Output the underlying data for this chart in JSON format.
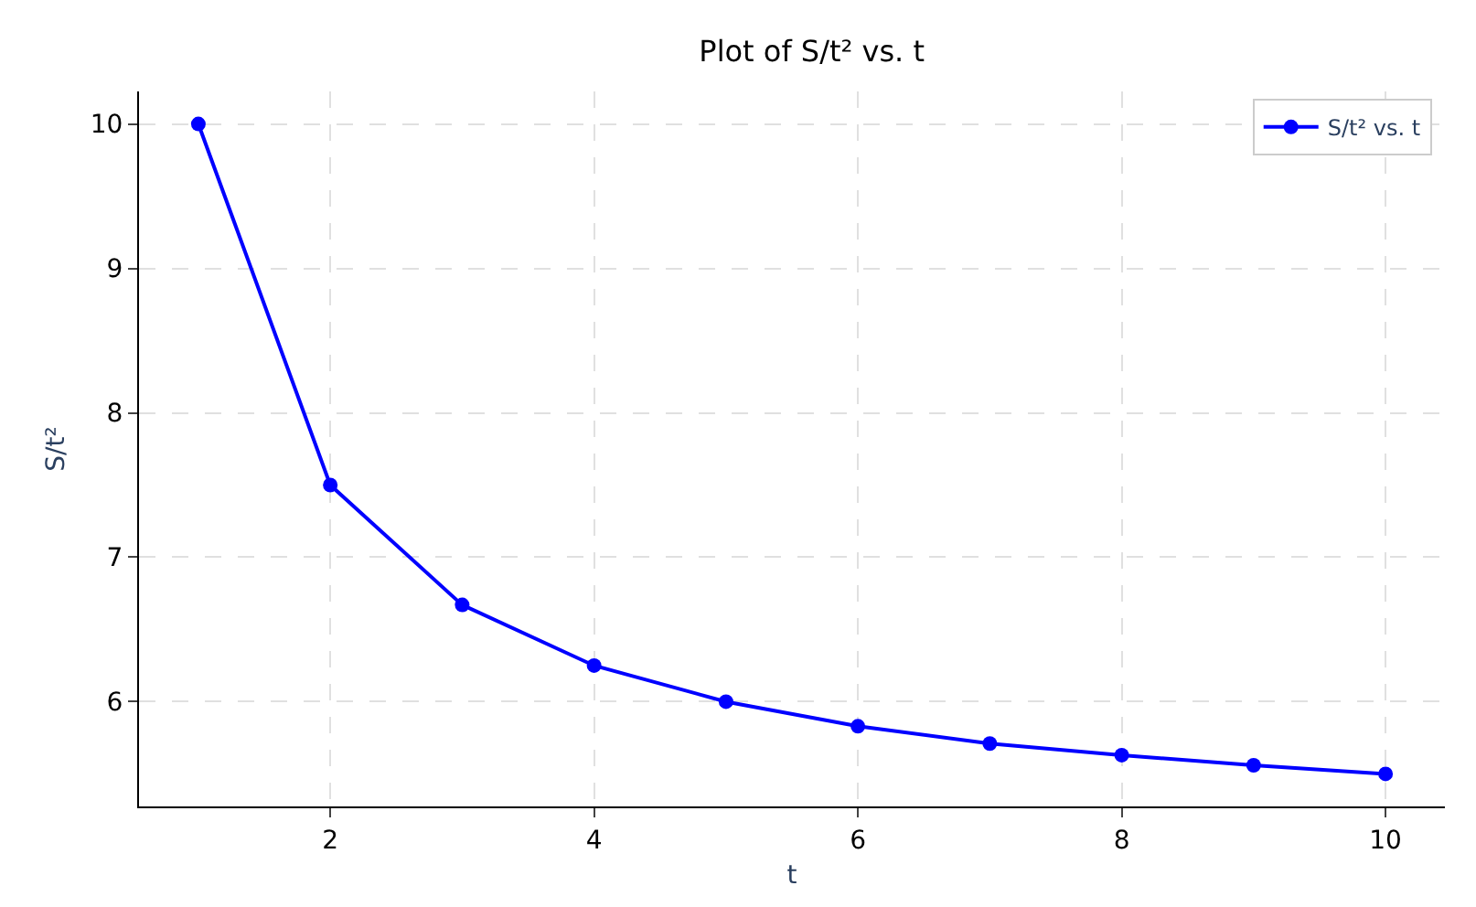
{
  "chart_data": {
    "type": "line",
    "title": "Plot of S/t² vs. t",
    "xlabel": "t",
    "ylabel": "S/t²",
    "x": [
      1,
      2,
      3,
      4,
      5,
      6,
      7,
      8,
      9,
      10
    ],
    "series": [
      {
        "name": "S/t² vs. t",
        "color": "#0000ff",
        "values": [
          10.0,
          7.5,
          6.67,
          6.25,
          6.0,
          5.83,
          5.71,
          5.63,
          5.56,
          5.5
        ]
      }
    ],
    "xlim": [
      0.55,
      10.45
    ],
    "xticks": [
      2,
      4,
      6,
      8,
      10
    ],
    "ylim": [
      5.275,
      10.225
    ],
    "yticks": [
      6,
      7,
      8,
      9,
      10
    ],
    "grid": true,
    "legend": "top right",
    "marker": "circle",
    "line_style": "solid"
  }
}
